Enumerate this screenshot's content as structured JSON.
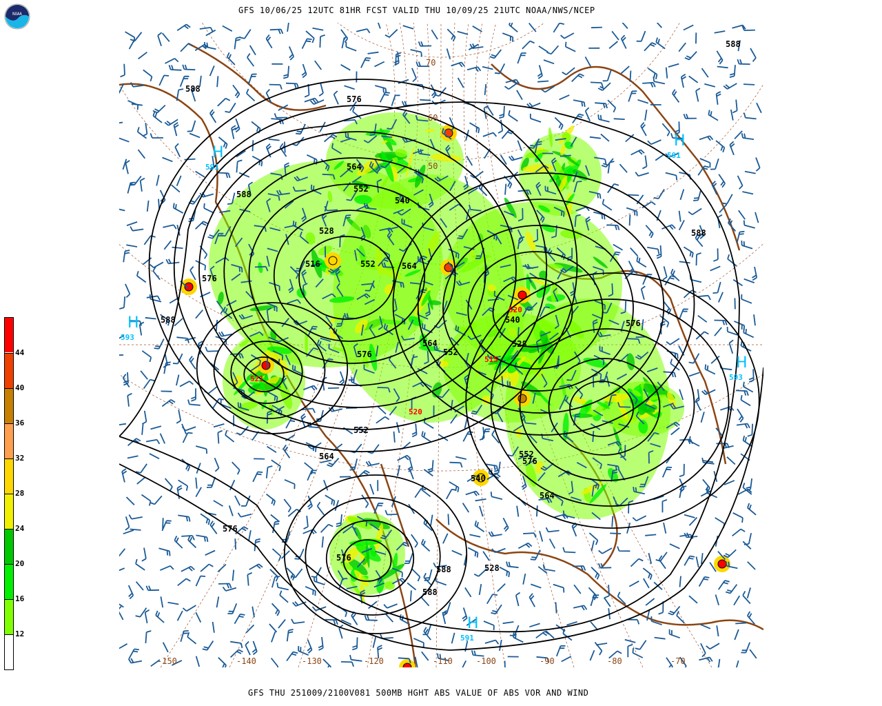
{
  "header": {
    "title": "GFS 10/06/25 12UTC 81HR FCST VALID THU 10/09/25 21UTC NOAA/NWS/NCEP",
    "logo_text": "NOAA"
  },
  "footer": {
    "caption": "GFS THU 251009/2100V081 500MB HGHT ABS VALUE OF ABS VOR AND WIND"
  },
  "legend": {
    "bins": [
      {
        "label": "",
        "color": "#ffffff"
      },
      {
        "label": "12",
        "color": "#80ff00"
      },
      {
        "label": "16",
        "color": "#00f000"
      },
      {
        "label": "20",
        "color": "#00c800"
      },
      {
        "label": "24",
        "color": "#f0f000"
      },
      {
        "label": "28",
        "color": "#ffd700"
      },
      {
        "label": "32",
        "color": "#ffa050"
      },
      {
        "label": "36",
        "color": "#c88000"
      },
      {
        "label": "40",
        "color": "#f04000"
      },
      {
        "label": "44",
        "color": "#ff0000"
      }
    ]
  },
  "map": {
    "colors": {
      "contour": "#000000",
      "wind_barb": "#1a5a96",
      "coastline": "#8b4513",
      "grid": "#a0522d",
      "high_marker": "#00bfff",
      "low_marker": "#ff0000"
    },
    "longitude_labels": [
      "-150",
      "-140",
      "-130",
      "-120",
      "-110",
      "-100",
      "-90",
      "-80",
      "-70"
    ],
    "latitude_labels": [
      "70",
      "60",
      "50"
    ],
    "height_labels": [
      "588",
      "576",
      "564",
      "552",
      "540",
      "528",
      "516",
      "588",
      "576",
      "564",
      "552",
      "540",
      "528",
      "552",
      "564",
      "576",
      "588",
      "576",
      "564",
      "552",
      "540",
      "528",
      "588",
      "576",
      "564",
      "552",
      "576",
      "588",
      "588",
      "576",
      "588"
    ],
    "highs": [
      {
        "symbol": "H",
        "value": "591"
      },
      {
        "symbol": "H",
        "value": "591"
      },
      {
        "symbol": "H",
        "value": "593"
      },
      {
        "symbol": "H",
        "value": "593"
      },
      {
        "symbol": "H",
        "value": "591"
      }
    ],
    "lows": [
      {
        "symbol": "L",
        "value": "520"
      },
      {
        "symbol": "L",
        "value": "515"
      },
      {
        "symbol": "L",
        "value": "521"
      },
      {
        "symbol": "L",
        "value": "520"
      }
    ]
  }
}
